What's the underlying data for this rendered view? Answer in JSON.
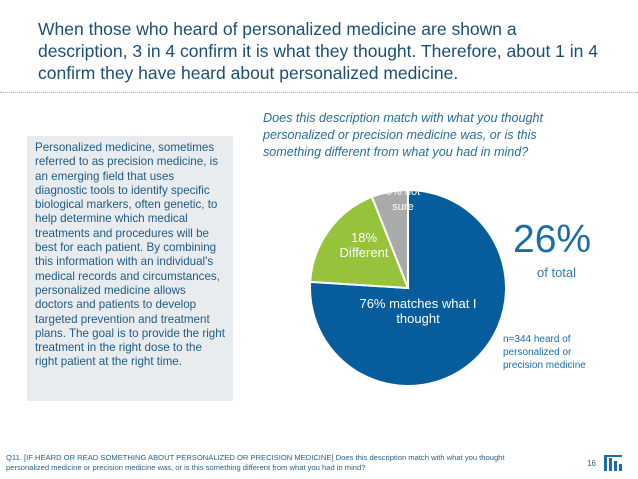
{
  "slide": {
    "title": "When those who heard of personalized medicine are shown a description, 3 in 4 confirm it is what they thought. Therefore, about 1 in 4 confirm they have heard about personalized medicine.",
    "description": "Personalized medicine, sometimes referred to as precision medicine, is an emerging field that uses diagnostic tools to identify specific biological markers, often genetic, to help determine which medical treatments and procedures will be best for each patient. By combining this information with an individual's medical records and circumstances, personalized medicine allows doctors and patients to develop targeted prevention and treatment plans. The goal is to provide the right treatment in the right dose to the right patient at the right time.",
    "question": "Does this description match with what you thought personalized or precision medicine was, or is this something different from what you had in mind?",
    "stat_value": "26%",
    "stat_label": "of total",
    "sample_note": "n=344 heard of personalized or precision medicine",
    "footnote": "Q11. [IF HEARD OR READ SOMETHING ABOUT PERSONALIZED OR PRECISION MEDICINE] Does this description match with what you thought personalized medicine or precision medicine was, or is this something different from what you had in mind?",
    "page_number": "16",
    "colors": {
      "title": "#1c4e74",
      "accent": "#1b6da6",
      "box_bg": "#e9ecee"
    }
  },
  "chart_data": {
    "type": "pie",
    "title": "Does this description match with what you thought personalized or precision medicine was, or is this something different from what you had in mind?",
    "slices": [
      {
        "label": "76% matches what I thought",
        "value": 76,
        "color": "#075d9c",
        "label_color": "#ffffff"
      },
      {
        "label": "18% Different",
        "value": 18,
        "color": "#97c23c",
        "label_color": "#ffffff"
      },
      {
        "label": "6% not sure",
        "value": 6,
        "color": "#a9aaab",
        "label_color": "#ffffff"
      }
    ]
  }
}
